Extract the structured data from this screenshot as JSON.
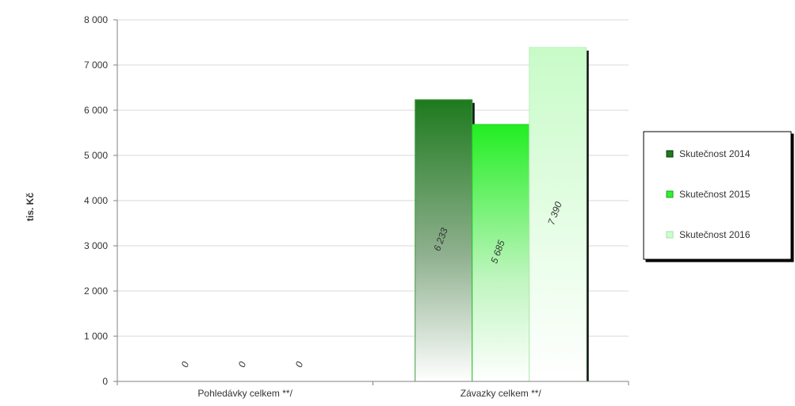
{
  "chart_data": {
    "type": "bar",
    "ylabel": "tis. Kč",
    "ylim": [
      0,
      8000
    ],
    "yticks": [
      0,
      1000,
      2000,
      3000,
      4000,
      5000,
      6000,
      7000,
      8000
    ],
    "ytick_labels": [
      "0",
      "1 000",
      "2 000",
      "3 000",
      "4 000",
      "5 000",
      "6 000",
      "7 000",
      "8 000"
    ],
    "categories": [
      "Pohledávky celkem **/",
      "Závazky celkem **/"
    ],
    "series": [
      {
        "name": "Skutečnost 2014",
        "values": [
          0,
          6233
        ],
        "labels": [
          "0",
          "6 233"
        ],
        "color": "#1e7a1e"
      },
      {
        "name": "Skutečnost 2015",
        "values": [
          0,
          5685
        ],
        "labels": [
          "0",
          "5 685"
        ],
        "color": "#33ee33"
      },
      {
        "name": "Skutečnost 2016",
        "values": [
          0,
          7390
        ],
        "labels": [
          "0",
          "7 390"
        ],
        "color": "#ccffcc"
      }
    ],
    "grid": true,
    "legend_position": "right"
  }
}
